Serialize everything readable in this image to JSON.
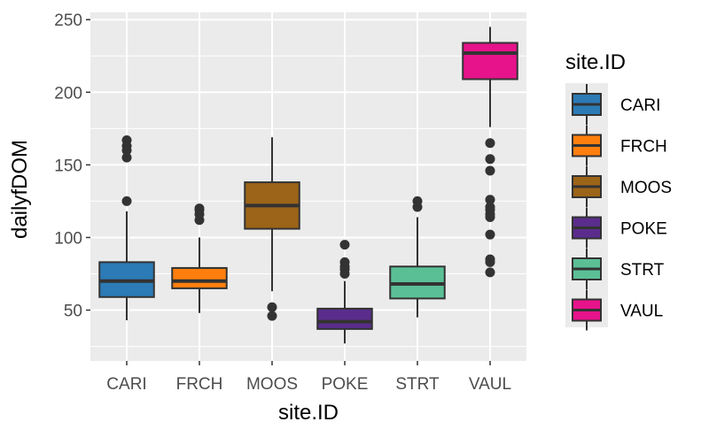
{
  "chart_data": {
    "type": "boxplot",
    "xlabel": "site.ID",
    "ylabel": "dailyfDOM",
    "ylim": [
      15,
      255
    ],
    "yticks": [
      50,
      100,
      150,
      200,
      250
    ],
    "grid": true,
    "legend": {
      "title": "site.ID",
      "position": "right"
    },
    "categories": [
      "CARI",
      "FRCH",
      "MOOS",
      "POKE",
      "STRT",
      "VAUL"
    ],
    "boxes": [
      {
        "name": "CARI",
        "color": "#2c7bb6",
        "whisker_low": 43,
        "q1": 59,
        "median": 70,
        "q3": 83,
        "whisker_high": 118,
        "outliers": [
          125,
          155,
          160,
          163,
          167
        ]
      },
      {
        "name": "FRCH",
        "color": "#ff7f0e",
        "whisker_low": 48,
        "q1": 65,
        "median": 70,
        "q3": 79,
        "whisker_high": 100,
        "outliers": [
          112,
          116,
          119,
          120
        ]
      },
      {
        "name": "MOOS",
        "color": "#9c6418",
        "whisker_low": 63,
        "q1": 106,
        "median": 122,
        "q3": 138,
        "whisker_high": 169,
        "outliers": [
          46,
          52
        ]
      },
      {
        "name": "POKE",
        "color": "#5a2d8c",
        "whisker_low": 27,
        "q1": 37,
        "median": 42,
        "q3": 51,
        "whisker_high": 70,
        "outliers": [
          75,
          78,
          80,
          83,
          95
        ]
      },
      {
        "name": "STRT",
        "color": "#5bbf96",
        "whisker_low": 45,
        "q1": 58,
        "median": 68,
        "q3": 80,
        "whisker_high": 114,
        "outliers": [
          121,
          125
        ]
      },
      {
        "name": "VAUL",
        "color": "#e7138a",
        "whisker_low": 176,
        "q1": 209,
        "median": 227,
        "q3": 234,
        "whisker_high": 245,
        "outliers": [
          76,
          83,
          85,
          102,
          114,
          116,
          119,
          121,
          126,
          146,
          154,
          165
        ]
      }
    ]
  }
}
